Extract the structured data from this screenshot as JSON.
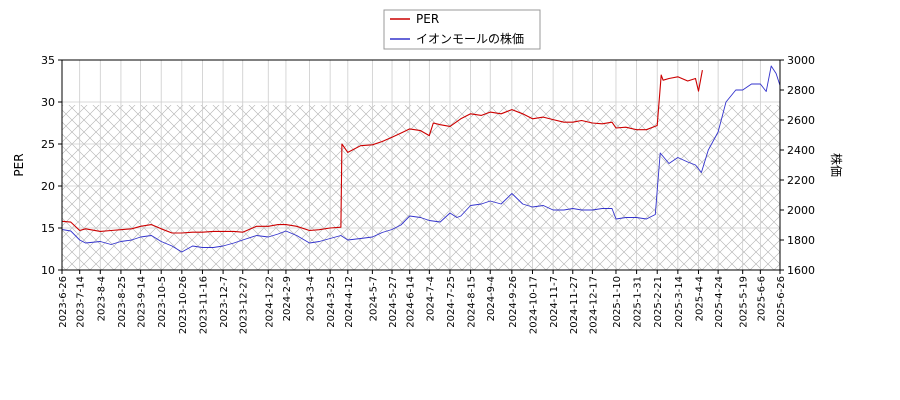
{
  "chart_data": {
    "type": "line",
    "title": "",
    "xlabel": "",
    "ylabel_left": "PER",
    "ylabel_right": "株価",
    "ylim_left": [
      10,
      35
    ],
    "ylim_right": [
      1600,
      3000
    ],
    "yticks_left": [
      10,
      15,
      20,
      25,
      30,
      35
    ],
    "yticks_right": [
      1600,
      1800,
      2000,
      2200,
      2400,
      2600,
      2800,
      3000
    ],
    "xlim": [
      "2023-06-26",
      "2025-06-26"
    ],
    "xticks": [
      "2023-6-26",
      "2023-7-14",
      "2023-8-4",
      "2023-8-25",
      "2023-9-14",
      "2023-10-5",
      "2023-10-26",
      "2023-11-16",
      "2023-12-7",
      "2023-12-27",
      "2024-1-22",
      "2024-2-9",
      "2024-3-4",
      "2024-3-25",
      "2024-4-12",
      "2024-5-7",
      "2024-5-27",
      "2024-6-14",
      "2024-7-4",
      "2024-7-25",
      "2024-8-15",
      "2024-9-4",
      "2024-9-26",
      "2024-10-17",
      "2024-11-7",
      "2024-11-27",
      "2024-12-17",
      "2025-1-10",
      "2025-1-31",
      "2025-2-21",
      "2025-3-14",
      "2025-4-4",
      "2025-4-24",
      "2025-5-19",
      "2025-6-6",
      "2025-6-26"
    ],
    "grid": true,
    "legend_position": "top-center",
    "hatched_band_right": [
      1600,
      2700
    ],
    "series": [
      {
        "name": "PER",
        "axis": "left",
        "color": "#cc0000",
        "x": [
          "2023-06-26",
          "2023-07-05",
          "2023-07-14",
          "2023-07-20",
          "2023-08-04",
          "2023-08-15",
          "2023-08-25",
          "2023-09-05",
          "2023-09-14",
          "2023-09-25",
          "2023-10-05",
          "2023-10-16",
          "2023-10-26",
          "2023-11-06",
          "2023-11-16",
          "2023-11-27",
          "2023-12-07",
          "2023-12-18",
          "2023-12-27",
          "2024-01-10",
          "2024-01-22",
          "2024-02-01",
          "2024-02-09",
          "2024-02-20",
          "2024-03-04",
          "2024-03-14",
          "2024-03-25",
          "2024-04-05",
          "2024-04-06",
          "2024-04-12",
          "2024-04-25",
          "2024-05-07",
          "2024-05-17",
          "2024-05-27",
          "2024-06-05",
          "2024-06-14",
          "2024-06-25",
          "2024-07-04",
          "2024-07-08",
          "2024-07-15",
          "2024-07-25",
          "2024-08-05",
          "2024-08-15",
          "2024-08-26",
          "2024-09-04",
          "2024-09-15",
          "2024-09-26",
          "2024-10-07",
          "2024-10-17",
          "2024-10-28",
          "2024-11-07",
          "2024-11-18",
          "2024-11-27",
          "2024-12-06",
          "2024-12-17",
          "2024-12-27",
          "2025-01-06",
          "2025-01-10",
          "2025-01-20",
          "2025-01-31",
          "2025-02-10",
          "2025-02-21",
          "2025-02-25",
          "2025-02-27",
          "2025-03-05",
          "2025-03-14",
          "2025-03-24",
          "2025-04-01",
          "2025-04-04",
          "2025-04-08"
        ],
        "values": [
          15.8,
          15.7,
          14.7,
          14.9,
          14.6,
          14.7,
          14.8,
          14.9,
          15.2,
          15.4,
          14.9,
          14.4,
          14.4,
          14.5,
          14.5,
          14.6,
          14.6,
          14.6,
          14.5,
          15.2,
          15.2,
          15.4,
          15.4,
          15.2,
          14.7,
          14.8,
          15.0,
          15.1,
          25.0,
          24.0,
          24.8,
          24.9,
          25.3,
          25.8,
          26.3,
          26.8,
          26.6,
          26.0,
          27.5,
          27.3,
          27.1,
          28.0,
          28.6,
          28.4,
          28.8,
          28.6,
          29.1,
          28.6,
          28.0,
          28.2,
          27.9,
          27.6,
          27.6,
          27.8,
          27.5,
          27.4,
          27.6,
          26.9,
          27.0,
          26.7,
          26.7,
          27.2,
          33.2,
          32.6,
          32.8,
          33.0,
          32.5,
          32.8,
          31.3,
          33.8
        ]
      },
      {
        "name": "イオンモールの株価",
        "axis": "right",
        "color": "#3333cc",
        "x": [
          "2023-06-26",
          "2023-07-05",
          "2023-07-14",
          "2023-07-20",
          "2023-08-04",
          "2023-08-15",
          "2023-08-25",
          "2023-09-05",
          "2023-09-14",
          "2023-09-25",
          "2023-10-05",
          "2023-10-16",
          "2023-10-26",
          "2023-11-06",
          "2023-11-16",
          "2023-11-27",
          "2023-12-07",
          "2023-12-18",
          "2023-12-27",
          "2024-01-10",
          "2024-01-22",
          "2024-02-01",
          "2024-02-09",
          "2024-02-20",
          "2024-03-04",
          "2024-03-14",
          "2024-03-25",
          "2024-04-05",
          "2024-04-12",
          "2024-04-25",
          "2024-05-07",
          "2024-05-17",
          "2024-05-27",
          "2024-06-05",
          "2024-06-14",
          "2024-06-25",
          "2024-07-04",
          "2024-07-15",
          "2024-07-25",
          "2024-08-01",
          "2024-08-05",
          "2024-08-15",
          "2024-08-26",
          "2024-09-04",
          "2024-09-15",
          "2024-09-26",
          "2024-10-07",
          "2024-10-17",
          "2024-10-28",
          "2024-11-07",
          "2024-11-18",
          "2024-11-27",
          "2024-12-06",
          "2024-12-17",
          "2024-12-27",
          "2025-01-06",
          "2025-01-10",
          "2025-01-20",
          "2025-01-31",
          "2025-02-10",
          "2025-02-19",
          "2025-02-24",
          "2025-03-05",
          "2025-03-14",
          "2025-03-24",
          "2025-04-01",
          "2025-04-07",
          "2025-04-14",
          "2025-04-24",
          "2025-05-02",
          "2025-05-12",
          "2025-05-19",
          "2025-05-28",
          "2025-06-06",
          "2025-06-12",
          "2025-06-17",
          "2025-06-22",
          "2025-06-26"
        ],
        "values": [
          1870,
          1860,
          1800,
          1780,
          1790,
          1770,
          1790,
          1800,
          1820,
          1830,
          1790,
          1760,
          1720,
          1760,
          1750,
          1750,
          1760,
          1780,
          1800,
          1830,
          1820,
          1840,
          1860,
          1830,
          1780,
          1790,
          1810,
          1830,
          1800,
          1810,
          1820,
          1850,
          1870,
          1900,
          1960,
          1950,
          1930,
          1920,
          1980,
          1950,
          1960,
          2030,
          2040,
          2060,
          2040,
          2110,
          2040,
          2020,
          2030,
          2000,
          2000,
          2010,
          2000,
          2000,
          2010,
          2010,
          1940,
          1950,
          1950,
          1940,
          1970,
          2380,
          2310,
          2350,
          2320,
          2300,
          2250,
          2400,
          2520,
          2720,
          2800,
          2800,
          2840,
          2840,
          2790,
          2960,
          2910,
          2830
        ]
      }
    ]
  }
}
